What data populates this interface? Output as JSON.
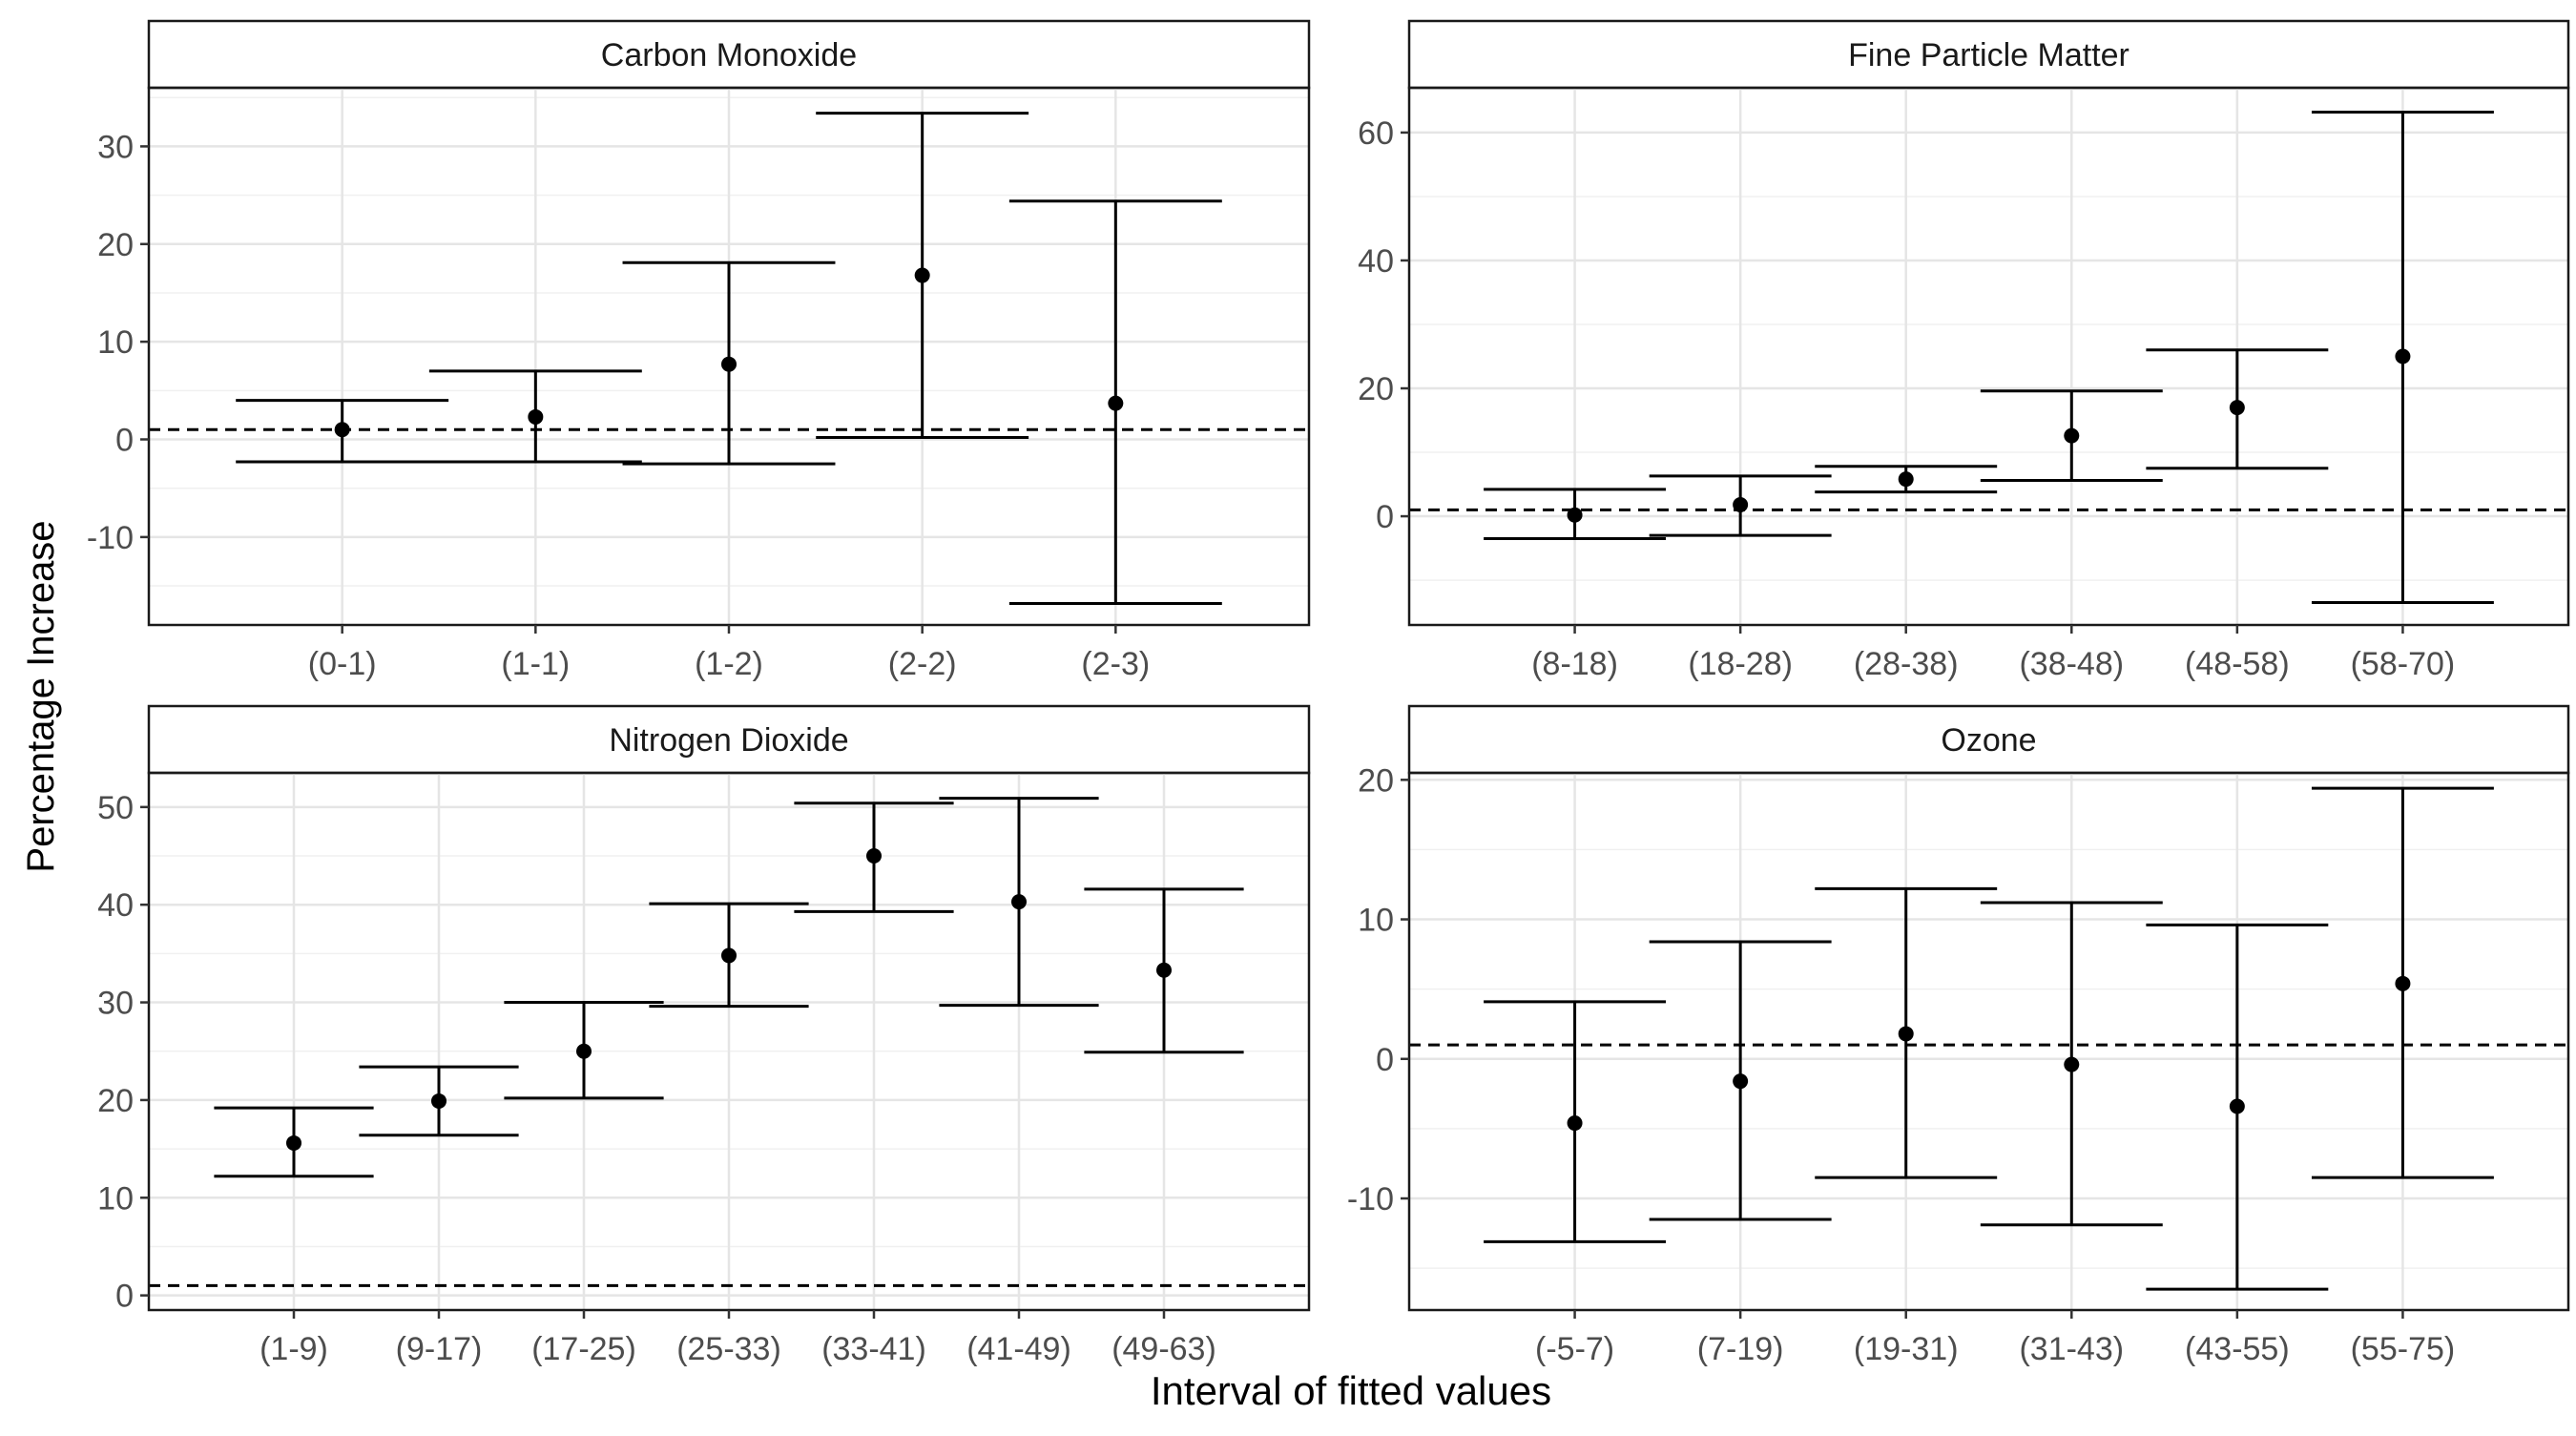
{
  "figure": {
    "ylabel": "Percentage Increase",
    "xlabel": "Interval of fitted values",
    "reference_line": 1
  },
  "chart_data": [
    {
      "type": "errorbar",
      "title": "Carbon Monoxide",
      "categories": [
        "(0-1)",
        "(1-1)",
        "(1-2)",
        "(2-2)",
        "(2-3)"
      ],
      "estimate": [
        1,
        2.3,
        7.7,
        16.8,
        3.7
      ],
      "lower": [
        -2.3,
        -2.3,
        -2.5,
        0.2,
        -16.8
      ],
      "upper": [
        4.0,
        7.0,
        18.1,
        33.4,
        24.4
      ],
      "ylim": [
        -19,
        36
      ],
      "yticks": [
        -10,
        0,
        10,
        20,
        30
      ],
      "reference_line": 1,
      "xlabel": "",
      "ylabel": ""
    },
    {
      "type": "errorbar",
      "title": "Fine Particle Matter",
      "categories": [
        "(8-18)",
        "(18-28)",
        "(28-38)",
        "(38-48)",
        "(48-58)",
        "(58-70)"
      ],
      "estimate": [
        0.2,
        1.8,
        5.8,
        12.6,
        17,
        25
      ],
      "lower": [
        -3.5,
        -3.0,
        3.8,
        5.6,
        7.5,
        -13.5
      ],
      "upper": [
        4.2,
        6.3,
        7.8,
        19.6,
        26,
        63.2
      ],
      "ylim": [
        -17,
        67
      ],
      "yticks": [
        0,
        20,
        40,
        60
      ],
      "reference_line": 1,
      "xlabel": "",
      "ylabel": ""
    },
    {
      "type": "errorbar",
      "title": "Nitrogen Dioxide",
      "categories": [
        "(1-9)",
        "(9-17)",
        "(17-25)",
        "(25-33)",
        "(33-41)",
        "(41-49)",
        "(49-63)"
      ],
      "estimate": [
        15.6,
        19.9,
        25,
        34.8,
        45,
        40.3,
        33.3
      ],
      "lower": [
        12.2,
        16.4,
        20.2,
        29.6,
        39.3,
        29.7,
        24.9
      ],
      "upper": [
        19.2,
        23.4,
        30,
        40.1,
        50.4,
        50.9,
        41.6
      ],
      "ylim": [
        -1.5,
        53.5
      ],
      "yticks": [
        0,
        10,
        20,
        30,
        40,
        50
      ],
      "reference_line": 1,
      "xlabel": "",
      "ylabel": ""
    },
    {
      "type": "errorbar",
      "title": "Ozone",
      "categories": [
        "(-5-7)",
        "(7-19)",
        "(19-31)",
        "(31-43)",
        "(43-55)",
        "(55-75)"
      ],
      "estimate": [
        -4.6,
        -1.6,
        1.8,
        -0.4,
        -3.4,
        5.4
      ],
      "lower": [
        -13.1,
        -11.5,
        -8.5,
        -11.9,
        -16.5,
        -8.5
      ],
      "upper": [
        4.1,
        8.4,
        12.2,
        11.2,
        9.6,
        19.4
      ],
      "ylim": [
        -18,
        20.5
      ],
      "yticks": [
        -10,
        0,
        10,
        20
      ],
      "reference_line": 1,
      "xlabel": "",
      "ylabel": ""
    }
  ]
}
